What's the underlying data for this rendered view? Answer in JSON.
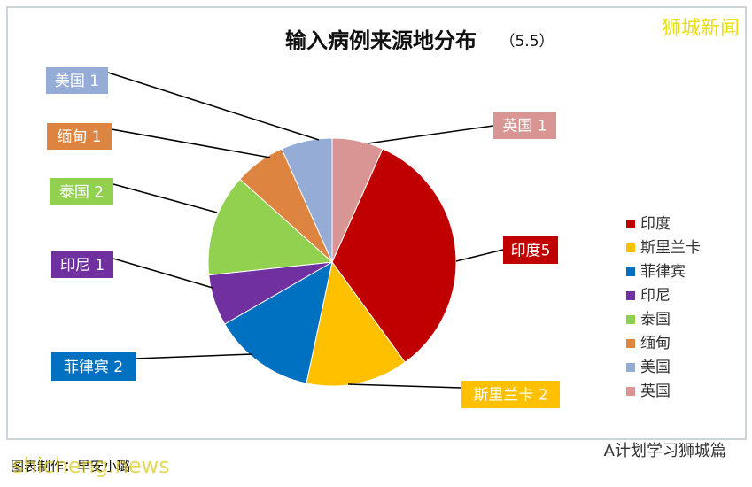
{
  "chart_data": {
    "type": "pie",
    "title": "输入病例来源地分布",
    "subtitle": "（5.5）",
    "categories": [
      "印度",
      "斯里兰卡",
      "菲律宾",
      "印尼",
      "泰国",
      "缅甸",
      "美国",
      "英国"
    ],
    "values": [
      5,
      2,
      2,
      1,
      2,
      1,
      1,
      1
    ],
    "value_labels": [
      "印度5",
      "斯里兰卡 2",
      "菲律宾 2",
      "印尼 1",
      "泰国 2",
      "缅甸 1",
      "美国 1",
      "英国 1"
    ],
    "colors": [
      "#c00000",
      "#ffc000",
      "#0070c0",
      "#7030a0",
      "#92d050",
      "#dd8440",
      "#95acd6",
      "#d99594"
    ],
    "legend": "right"
  },
  "watermarks": [
    "狮城新闻",
    "A计划学习狮城篇",
    "shicheng.news"
  ],
  "caption": "图表制作：早安小璐"
}
